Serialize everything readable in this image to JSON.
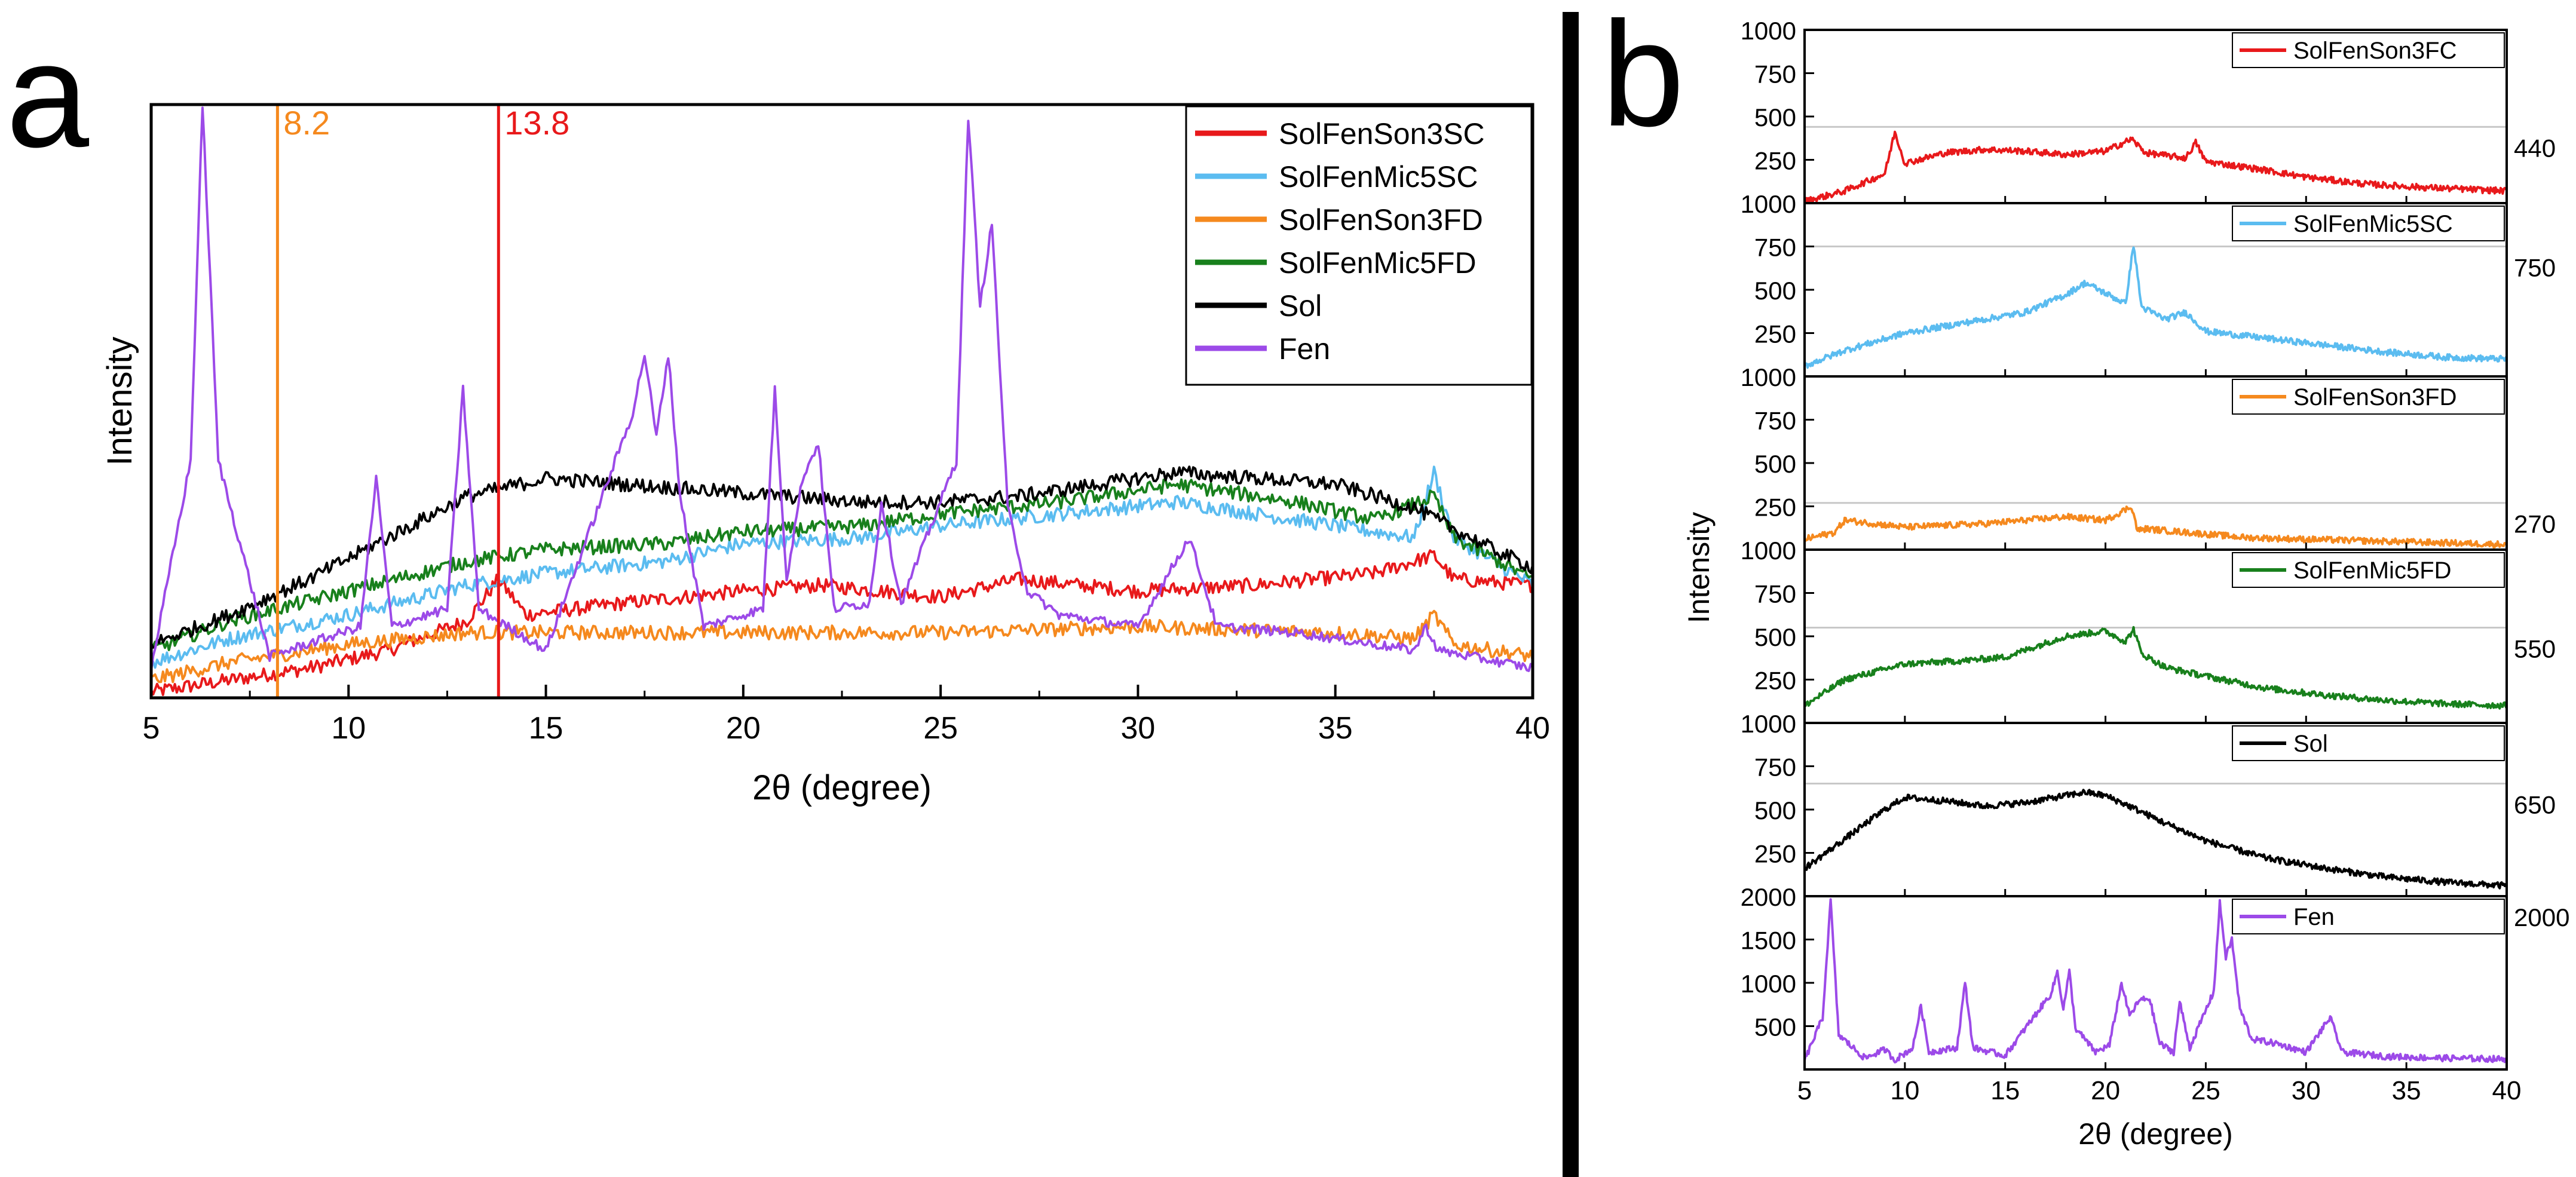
{
  "panel_a": {
    "letter": "a",
    "marker_8_2": "8.2",
    "marker_13_8": "13.8"
  },
  "panel_b": {
    "letter": "b",
    "threshold_labels": [
      "440",
      "750",
      "270",
      "550",
      "650",
      "2000"
    ]
  },
  "colors": {
    "red": "#e8191b",
    "blue": "#5bbcf0",
    "orange": "#f5891e",
    "green": "#18801c",
    "black": "#000000",
    "purple": "#9c4ae8"
  },
  "chart_data": [
    {
      "type": "line",
      "title": "",
      "xlabel": "2θ (degree)",
      "ylabel": "Intensity",
      "xlim": [
        5,
        40
      ],
      "ylim": [
        0,
        100
      ],
      "x_ticks": [
        5,
        10,
        15,
        20,
        25,
        30,
        35,
        40
      ],
      "legend": "top-right",
      "annotations": [
        {
          "x": 8.2,
          "label": "8.2",
          "color": "#f5891e"
        },
        {
          "x": 13.8,
          "label": "13.8",
          "color": "#e8191b"
        }
      ],
      "series": [
        {
          "name": "SolFenSon3SC",
          "color": "#e8191b",
          "x": [
            5,
            7,
            9,
            11,
            13,
            13.8,
            14.5,
            17,
            20,
            22,
            25,
            27,
            30,
            33,
            36,
            37.5,
            38,
            40
          ],
          "y": [
            1,
            3,
            5,
            8,
            13,
            20,
            14,
            16,
            18,
            19,
            17,
            20,
            18,
            19,
            21,
            24,
            20,
            19
          ]
        },
        {
          "name": "SolFenMic5SC",
          "color": "#5bbcf0",
          "x": [
            5,
            7,
            10,
            13,
            15,
            18,
            20,
            23,
            25,
            28,
            31,
            33,
            35,
            37,
            37.5,
            38,
            40
          ],
          "y": [
            6,
            10,
            14,
            19,
            21,
            23,
            26,
            27,
            29,
            31,
            33,
            31,
            29,
            27,
            38,
            27,
            19
          ]
        },
        {
          "name": "SolFenSon3FD",
          "color": "#f5891e",
          "x": [
            5,
            7,
            10,
            13,
            15,
            20,
            25,
            30,
            35,
            37,
            37.5,
            38,
            40
          ],
          "y": [
            3,
            6,
            9,
            11,
            11,
            11,
            11,
            12,
            11,
            10,
            14,
            9,
            7
          ]
        },
        {
          "name": "SolFenMic5FD",
          "color": "#18801c",
          "x": [
            5,
            7,
            10,
            13,
            15,
            18,
            20,
            23,
            25,
            28,
            31,
            34,
            36,
            37.5,
            38,
            40
          ],
          "y": [
            8,
            13,
            18,
            23,
            25,
            26,
            28,
            29,
            31,
            33,
            36,
            33,
            30,
            34,
            27,
            20
          ]
        },
        {
          "name": "Sol",
          "color": "#000000",
          "x": [
            5,
            7,
            9,
            11,
            13,
            15,
            17,
            19,
            21,
            23,
            25,
            27,
            29,
            31,
            33,
            35,
            37,
            39,
            40
          ],
          "y": [
            9,
            14,
            20,
            27,
            34,
            37,
            36,
            35,
            34,
            33,
            33,
            34,
            36,
            38,
            37,
            36,
            32,
            25,
            22
          ]
        },
        {
          "name": "Fen",
          "color": "#9c4ae8",
          "x": [
            5,
            6.0,
            6.3,
            6.7,
            8,
            10.3,
            10.7,
            11.1,
            12.5,
            12.9,
            13.3,
            15,
            17.2,
            17.5,
            17.8,
            18.1,
            18.4,
            19,
            20.5,
            20.8,
            21.1,
            21.5,
            21.9,
            22.3,
            23.2,
            23.5,
            24,
            25.4,
            25.7,
            26.0,
            26.3,
            26.7,
            27.2,
            28,
            30,
            31.3,
            32,
            34,
            37,
            37.3,
            37.6,
            40
          ],
          "y": [
            5,
            40,
            100,
            40,
            7,
            12,
            37,
            12,
            15,
            52,
            15,
            8,
            48,
            58,
            44,
            58,
            34,
            12,
            15,
            52,
            20,
            37,
            43,
            15,
            16,
            33,
            16,
            40,
            98,
            66,
            80,
            32,
            18,
            14,
            12,
            27,
            12,
            11,
            8,
            12,
            8,
            5
          ]
        }
      ]
    },
    {
      "type": "line",
      "title": "",
      "xlabel": "2θ (degree)",
      "ylabel": "Intensity",
      "xlim": [
        5,
        40
      ],
      "x_ticks": [
        5,
        10,
        15,
        20,
        25,
        30,
        35,
        40
      ],
      "legend": "top-right",
      "subplots": [
        {
          "name": "SolFenSon3FC",
          "color": "#e8191b",
          "ylim": [
            0,
            1000
          ],
          "yticks": [
            250,
            500,
            750,
            1000
          ],
          "ytick_labels": [
            "250",
            "500",
            "750",
            "1000"
          ],
          "threshold": 440,
          "x": [
            5,
            7,
            9,
            9.5,
            10,
            12,
            14,
            16,
            18,
            20,
            21.3,
            22,
            24,
            24.5,
            25,
            28,
            30,
            33,
            36,
            40
          ],
          "y": [
            10,
            70,
            170,
            410,
            230,
            290,
            310,
            300,
            280,
            300,
            370,
            290,
            260,
            350,
            240,
            190,
            150,
            110,
            90,
            70
          ]
        },
        {
          "name": "SolFenMic5SC",
          "color": "#5bbcf0",
          "ylim": [
            0,
            1000
          ],
          "yticks": [
            250,
            500,
            750,
            1000
          ],
          "ytick_labels": [
            "250",
            "500",
            "750",
            "1000"
          ],
          "threshold": 750,
          "x": [
            5,
            7,
            10,
            13,
            16,
            18,
            19,
            20,
            21,
            21.4,
            21.8,
            23,
            24,
            25,
            28,
            31,
            34,
            37,
            40
          ],
          "y": [
            60,
            150,
            250,
            310,
            370,
            470,
            540,
            480,
            420,
            760,
            400,
            330,
            370,
            260,
            220,
            180,
            140,
            110,
            100
          ]
        },
        {
          "name": "SolFenSon3FD",
          "color": "#f5891e",
          "ylim": [
            0,
            1000
          ],
          "yticks": [
            250,
            500,
            750,
            1000
          ],
          "ytick_labels": [
            "250",
            "500",
            "750",
            "1000"
          ],
          "threshold": 270,
          "x": [
            5,
            6.5,
            7,
            10,
            14,
            18,
            20,
            21.3,
            21.6,
            22,
            24,
            27,
            30,
            35,
            40
          ],
          "y": [
            60,
            100,
            170,
            130,
            150,
            190,
            170,
            250,
            110,
            120,
            100,
            70,
            60,
            45,
            30
          ]
        },
        {
          "name": "SolFenMic5FD",
          "color": "#18801c",
          "ylim": [
            0,
            1000
          ],
          "yticks": [
            250,
            500,
            750,
            1000
          ],
          "ytick_labels": [
            "250",
            "500",
            "750",
            "1000"
          ],
          "threshold": 550,
          "x": [
            5,
            7,
            10,
            13,
            15,
            18,
            20,
            21,
            21.4,
            21.8,
            23,
            25,
            28,
            31,
            34,
            37,
            40
          ],
          "y": [
            100,
            250,
            340,
            360,
            380,
            500,
            530,
            470,
            540,
            400,
            320,
            270,
            200,
            160,
            130,
            110,
            100
          ]
        },
        {
          "name": "Sol",
          "color": "#000000",
          "ylim": [
            0,
            1000
          ],
          "yticks": [
            250,
            500,
            750,
            1000
          ],
          "ytick_labels": [
            "250",
            "500",
            "750",
            "1000"
          ],
          "threshold": 650,
          "x": [
            5,
            7,
            9,
            10,
            12,
            14,
            16,
            18,
            19,
            20,
            21,
            23,
            25,
            28,
            31,
            34,
            37,
            40
          ],
          "y": [
            160,
            330,
            500,
            570,
            550,
            520,
            540,
            580,
            600,
            580,
            530,
            420,
            320,
            220,
            160,
            110,
            80,
            60
          ]
        },
        {
          "name": "Fen",
          "color": "#9c4ae8",
          "ylim": [
            0,
            2000
          ],
          "yticks": [
            500,
            1000,
            1500,
            2000
          ],
          "ytick_labels": [
            "500",
            "1000",
            "1500",
            "2000"
          ],
          "threshold": 2000,
          "x": [
            5,
            5.9,
            6.3,
            6.7,
            8,
            9,
            9.5,
            10.4,
            10.8,
            11.2,
            12.6,
            13.0,
            13.4,
            15,
            17.3,
            17.6,
            17.9,
            18.2,
            18.5,
            19.5,
            20.2,
            20.8,
            21.2,
            21.7,
            22.2,
            22.7,
            23.4,
            23.7,
            24.2,
            25.4,
            25.7,
            26.0,
            26.3,
            26.7,
            27.3,
            28.5,
            30,
            31.2,
            31.8,
            34,
            37,
            40
          ],
          "y": [
            100,
            600,
            1950,
            400,
            130,
            230,
            110,
            250,
            740,
            200,
            250,
            1000,
            250,
            160,
            880,
            1130,
            700,
            1130,
            480,
            200,
            280,
            1000,
            620,
            800,
            820,
            300,
            200,
            780,
            250,
            900,
            1920,
            1300,
            1500,
            700,
            350,
            300,
            200,
            600,
            200,
            150,
            130,
            120
          ]
        }
      ]
    }
  ]
}
